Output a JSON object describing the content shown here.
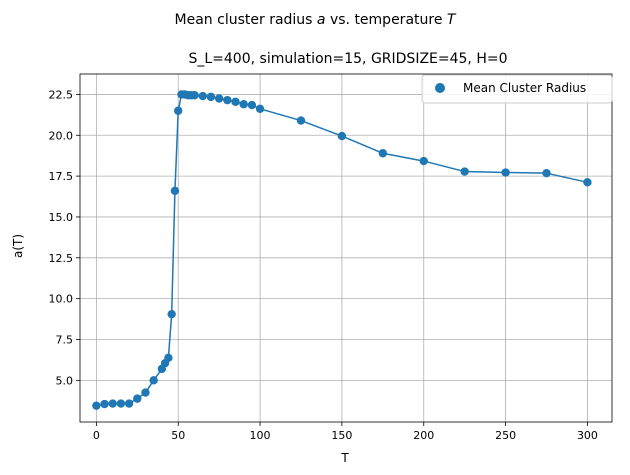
{
  "figure": {
    "suptitle_prefix": "Mean cluster radius ",
    "suptitle_var_a": "a",
    "suptitle_middle": " vs. temperature ",
    "suptitle_var_T": "T"
  },
  "chart_data": {
    "type": "line",
    "title": "S_L=400, simulation=15, GRIDSIZE=45, H=0",
    "xlabel": "T",
    "ylabel": "a(T)",
    "xlim": [
      -10,
      315
    ],
    "ylim": [
      2.45,
      23.75
    ],
    "xticks": [
      0,
      50,
      100,
      150,
      200,
      250,
      300
    ],
    "xtick_labels": [
      "0",
      "50",
      "100",
      "150",
      "200",
      "250",
      "300"
    ],
    "yticks": [
      5.0,
      7.5,
      10.0,
      12.5,
      15.0,
      17.5,
      20.0,
      22.5
    ],
    "ytick_labels": [
      "5.0",
      "7.5",
      "10.0",
      "12.5",
      "15.0",
      "17.5",
      "20.0",
      "22.5"
    ],
    "grid": true,
    "legend_position": "top-right",
    "series": [
      {
        "name": "Mean Cluster Radius",
        "color": "#1f77b4",
        "marker": "circle",
        "x": [
          0,
          5,
          10,
          15,
          20,
          25,
          30,
          35,
          40,
          42,
          44,
          46,
          48,
          50,
          52,
          54,
          56,
          58,
          60,
          65,
          70,
          75,
          80,
          85,
          90,
          95,
          100,
          125,
          150,
          175,
          200,
          225,
          250,
          275,
          300
        ],
        "y": [
          3.45,
          3.55,
          3.58,
          3.58,
          3.58,
          3.88,
          4.25,
          5.0,
          5.7,
          6.05,
          6.38,
          9.05,
          16.6,
          21.5,
          22.5,
          22.5,
          22.45,
          22.45,
          22.45,
          22.4,
          22.35,
          22.25,
          22.15,
          22.05,
          21.9,
          21.85,
          21.62,
          20.9,
          19.95,
          18.9,
          18.42,
          17.78,
          17.72,
          17.68,
          17.12
        ]
      }
    ]
  }
}
